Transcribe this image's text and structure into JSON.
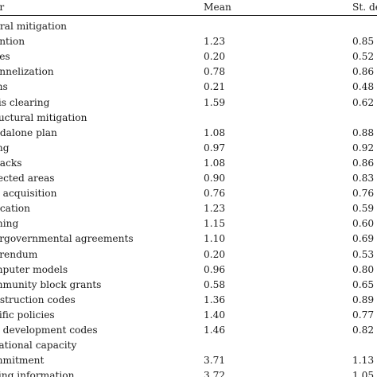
{
  "header": {
    "factor": "or",
    "mean": "Mean",
    "sd": "St. de"
  },
  "rows": [
    {
      "factor": "ural mitigation",
      "mean": "",
      "sd": ""
    },
    {
      "factor": "ention",
      "mean": "1.23",
      "sd": "0.85"
    },
    {
      "factor": "ees",
      "mean": "0.20",
      "sd": "0.52"
    },
    {
      "factor": "annelization",
      "mean": "0.78",
      "sd": "0.86"
    },
    {
      "factor": "ms",
      "mean": "0.21",
      "sd": "0.48"
    },
    {
      "factor": "ris clearing",
      "mean": "1.59",
      "sd": "0.62"
    },
    {
      "factor": "ructural mitigation",
      "mean": "",
      "sd": ""
    },
    {
      "factor": "ndalone plan",
      "mean": "1.08",
      "sd": "0.88"
    },
    {
      "factor": "ing",
      "mean": "0.97",
      "sd": "0.92"
    },
    {
      "factor": "backs",
      "mean": "1.08",
      "sd": "0.86"
    },
    {
      "factor": "tected areas",
      "mean": "0.90",
      "sd": "0.83"
    },
    {
      "factor": "d acquisition",
      "mean": "0.76",
      "sd": "0.76"
    },
    {
      "factor": "ucation",
      "mean": "1.23",
      "sd": "0.59"
    },
    {
      "factor": "ining",
      "mean": "1.15",
      "sd": "0.60"
    },
    {
      "factor": "ergovernmental agreements",
      "mean": "1.10",
      "sd": "0.69"
    },
    {
      "factor": "erendum",
      "mean": "0.20",
      "sd": "0.53"
    },
    {
      "factor": "mputer models",
      "mean": "0.96",
      "sd": "0.80"
    },
    {
      "factor": "mmunity block grants",
      "mean": "0.58",
      "sd": "0.65"
    },
    {
      "factor": "nstruction codes",
      "mean": "1.36",
      "sd": "0.89"
    },
    {
      "factor": "cific policies",
      "mean": "1.40",
      "sd": "0.77"
    },
    {
      "factor": "d development codes",
      "mean": "1.46",
      "sd": "0.82"
    },
    {
      "factor": "zational capacity",
      "mean": "",
      "sd": ""
    },
    {
      "factor": "mmitment",
      "mean": "3.71",
      "sd": "1.13"
    },
    {
      "factor": "ring information",
      "mean": "3.72",
      "sd": "1.05"
    }
  ]
}
